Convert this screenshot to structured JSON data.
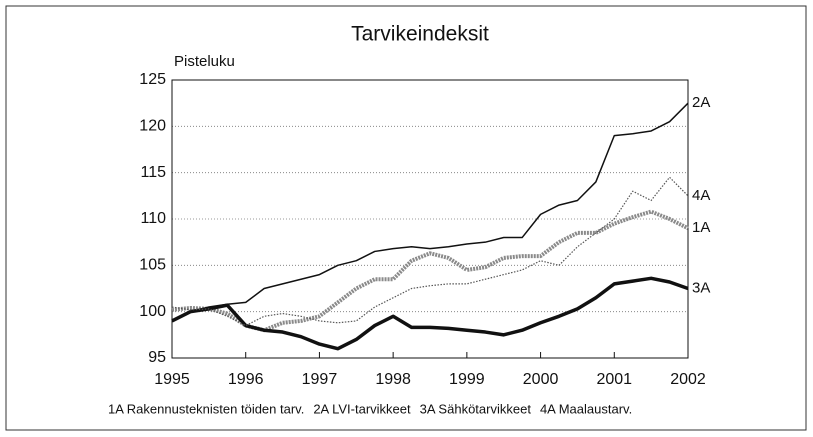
{
  "chart_data": {
    "type": "line",
    "title": "Tarvikeindeksit",
    "y_label": "Pisteluku",
    "x": [
      1995,
      1995.25,
      1995.5,
      1995.75,
      1996,
      1996.25,
      1996.5,
      1996.75,
      1997,
      1997.25,
      1997.5,
      1997.75,
      1998,
      1998.25,
      1998.5,
      1998.75,
      1999,
      1999.25,
      1999.5,
      1999.75,
      2000,
      2000.25,
      2000.5,
      2000.75,
      2001,
      2001.25,
      2001.5,
      2001.75,
      2002
    ],
    "series": [
      {
        "name": "1A Rakennusteknisten töiden tarv.",
        "label": "1A",
        "color": "#8a8a8a",
        "width": 4,
        "dash": "2 1",
        "values": [
          100.2,
          100.4,
          100.3,
          99.8,
          98.5,
          98,
          98.8,
          99,
          99.5,
          101,
          102.5,
          103.5,
          103.5,
          105.5,
          106.3,
          105.8,
          104.5,
          104.8,
          105.8,
          106,
          106,
          107.5,
          108.5,
          108.5,
          109.5,
          110.2,
          110.8,
          110,
          109
        ]
      },
      {
        "name": "2A LVI-tarvikkeet",
        "label": "2A",
        "color": "#111111",
        "width": 1.5,
        "dash": "none",
        "values": [
          99,
          100,
          100.5,
          100.8,
          101,
          102.5,
          103,
          103.5,
          104,
          105,
          105.5,
          106.5,
          106.8,
          107,
          106.8,
          107,
          107.3,
          107.5,
          108,
          108,
          110.5,
          111.5,
          112,
          114,
          119,
          119.2,
          119.5,
          120.5,
          122.5
        ]
      },
      {
        "name": "3A Sähkötarvikkeet",
        "label": "3A",
        "color": "#111111",
        "width": 3.5,
        "dash": "none",
        "values": [
          99,
          100,
          100.3,
          100.7,
          98.5,
          98,
          97.8,
          97.3,
          96.5,
          96,
          97,
          98.5,
          99.5,
          98.3,
          98.3,
          98.2,
          98,
          97.8,
          97.5,
          98,
          98.8,
          99.5,
          100.3,
          101.5,
          103,
          103.3,
          103.6,
          103.2,
          102.5
        ]
      },
      {
        "name": "4A Maalaustarv.",
        "label": "4A",
        "color": "#555555",
        "width": 1.2,
        "dash": "1.5 1.5",
        "values": [
          100.5,
          100.2,
          100.3,
          99.5,
          98.5,
          99.5,
          99.8,
          99.5,
          99,
          98.8,
          99,
          100.5,
          101.5,
          102.5,
          102.8,
          103,
          103,
          103.5,
          104,
          104.5,
          105.5,
          105,
          107,
          108.5,
          110,
          113,
          112,
          114.5,
          112.5
        ]
      }
    ],
    "xlim": [
      1995,
      2002
    ],
    "xticks": [
      1995,
      1996,
      1997,
      1998,
      1999,
      2000,
      2001,
      2002
    ],
    "ylim": [
      95,
      125
    ],
    "yticks": [
      95,
      100,
      105,
      110,
      115,
      120,
      125
    ],
    "grid": true
  }
}
